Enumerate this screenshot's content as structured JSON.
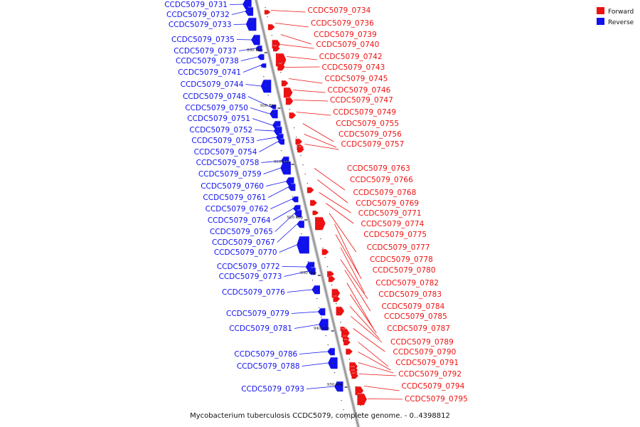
{
  "caption": "Mycobacterium tuberculosis CCDC5079, complete genome. - 0..4398812",
  "legend": [
    {
      "label": "Forward",
      "color": "#ee1111"
    },
    {
      "label": "Reverse",
      "color": "#1111ee"
    }
  ],
  "colors": {
    "forward": "#ee1111",
    "reverse": "#1111ee",
    "backbone": "#9a9a9a"
  },
  "ticks": [
    "890 kbp",
    "900 kbp",
    "910 kbp",
    "920 kbp",
    "930 kbp",
    "940 kbp",
    "950 kbp"
  ],
  "reverse_genes": [
    "CCDC5079_0731",
    "CCDC5079_0732",
    "CCDC5079_0733",
    "CCDC5079_0735",
    "CCDC5079_0737",
    "CCDC5079_0738",
    "CCDC5079_0741",
    "CCDC5079_0744",
    "CCDC5079_0748",
    "CCDC5079_0750",
    "CCDC5079_0751",
    "CCDC5079_0752",
    "CCDC5079_0753",
    "CCDC5079_0754",
    "CCDC5079_0758",
    "CCDC5079_0759",
    "CCDC5079_0760",
    "CCDC5079_0761",
    "CCDC5079_0762",
    "CCDC5079_0764",
    "CCDC5079_0765",
    "CCDC5079_0767",
    "CCDC5079_0770",
    "CCDC5079_0772",
    "CCDC5079_0773",
    "CCDC5079_0776",
    "CCDC5079_0779",
    "CCDC5079_0781",
    "CCDC5079_0786",
    "CCDC5079_0788",
    "CCDC5079_0793"
  ],
  "forward_genes": [
    "CCDC5079_0734",
    "CCDC5079_0736",
    "CCDC5079_0739",
    "CCDC5079_0740",
    "CCDC5079_0742",
    "CCDC5079_0743",
    "CCDC5079_0745",
    "CCDC5079_0746",
    "CCDC5079_0747",
    "CCDC5079_0749",
    "CCDC5079_0755",
    "CCDC5079_0756",
    "CCDC5079_0757",
    "CCDC5079_0763",
    "CCDC5079_0766",
    "CCDC5079_0768",
    "CCDC5079_0769",
    "CCDC5079_0771",
    "CCDC5079_0774",
    "CCDC5079_0775",
    "CCDC5079_0777",
    "CCDC5079_0778",
    "CCDC5079_0780",
    "CCDC5079_0782",
    "CCDC5079_0783",
    "CCDC5079_0784",
    "CCDC5079_0785",
    "CCDC5079_0787",
    "CCDC5079_0789",
    "CCDC5079_0790",
    "CCDC5079_0791",
    "CCDC5079_0792",
    "CCDC5079_0794",
    "CCDC5079_0795"
  ]
}
